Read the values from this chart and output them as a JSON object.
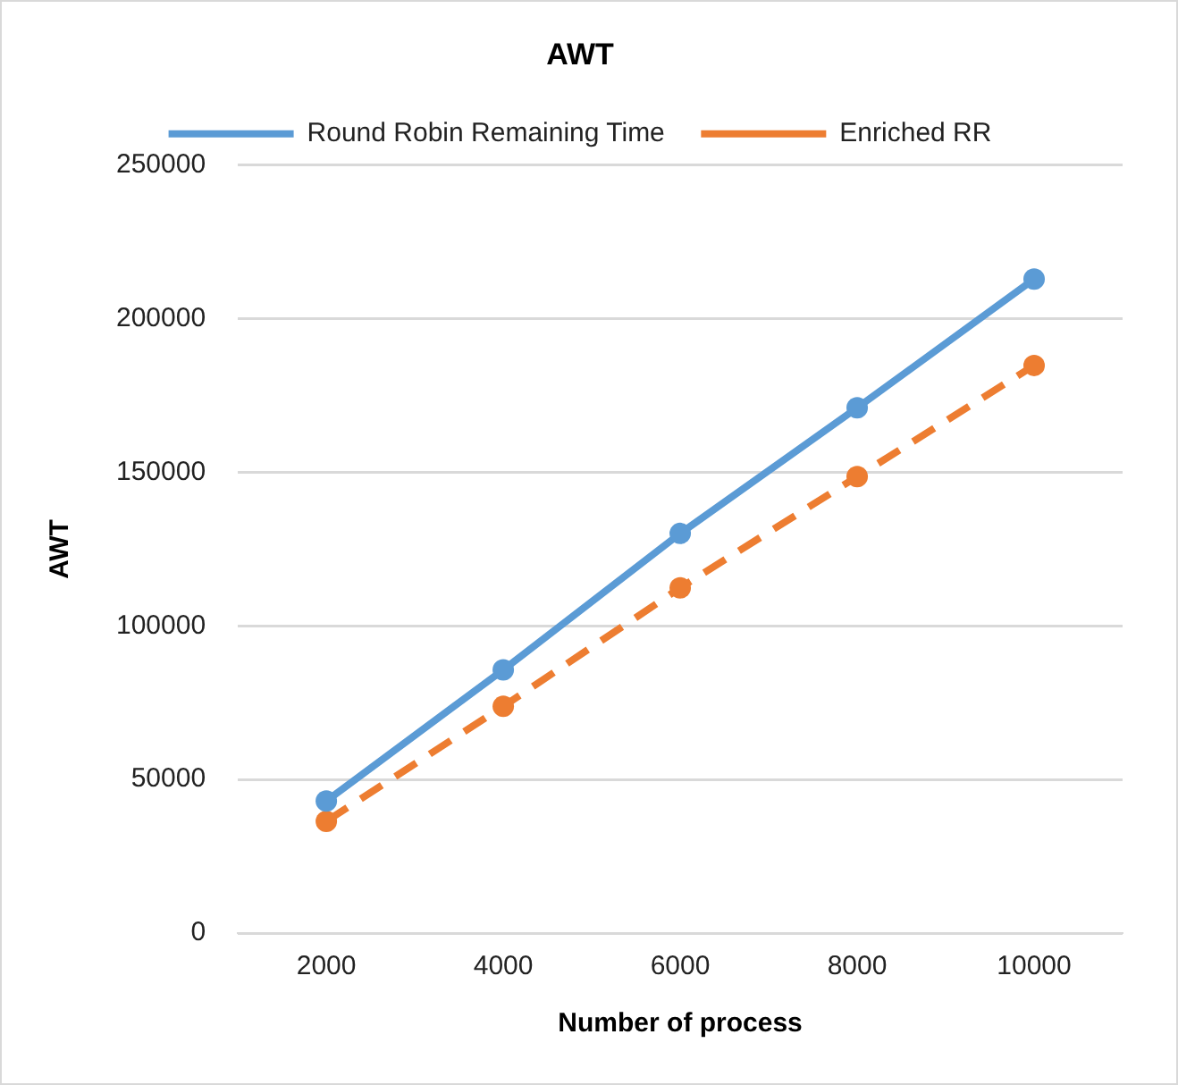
{
  "chart_data": {
    "type": "line",
    "title": "AWT",
    "xlabel": "Number of process",
    "ylabel": "AWT",
    "categories": [
      "2000",
      "4000",
      "6000",
      "8000",
      "10000"
    ],
    "series": [
      {
        "name": "Round Robin Remaining Time",
        "color": "#5b9bd5",
        "values": [
          43000,
          85700,
          130100,
          171000,
          212900
        ],
        "line_style": "solid"
      },
      {
        "name": "Enriched RR",
        "color": "#ed7d31",
        "values": [
          36400,
          73800,
          112400,
          148600,
          184800
        ],
        "line_style": "dashed"
      }
    ],
    "ylim": [
      0,
      250000
    ],
    "yticks": [
      0,
      50000,
      100000,
      150000,
      200000,
      250000
    ],
    "grid": "y",
    "legend": "top",
    "marker": "circle"
  }
}
